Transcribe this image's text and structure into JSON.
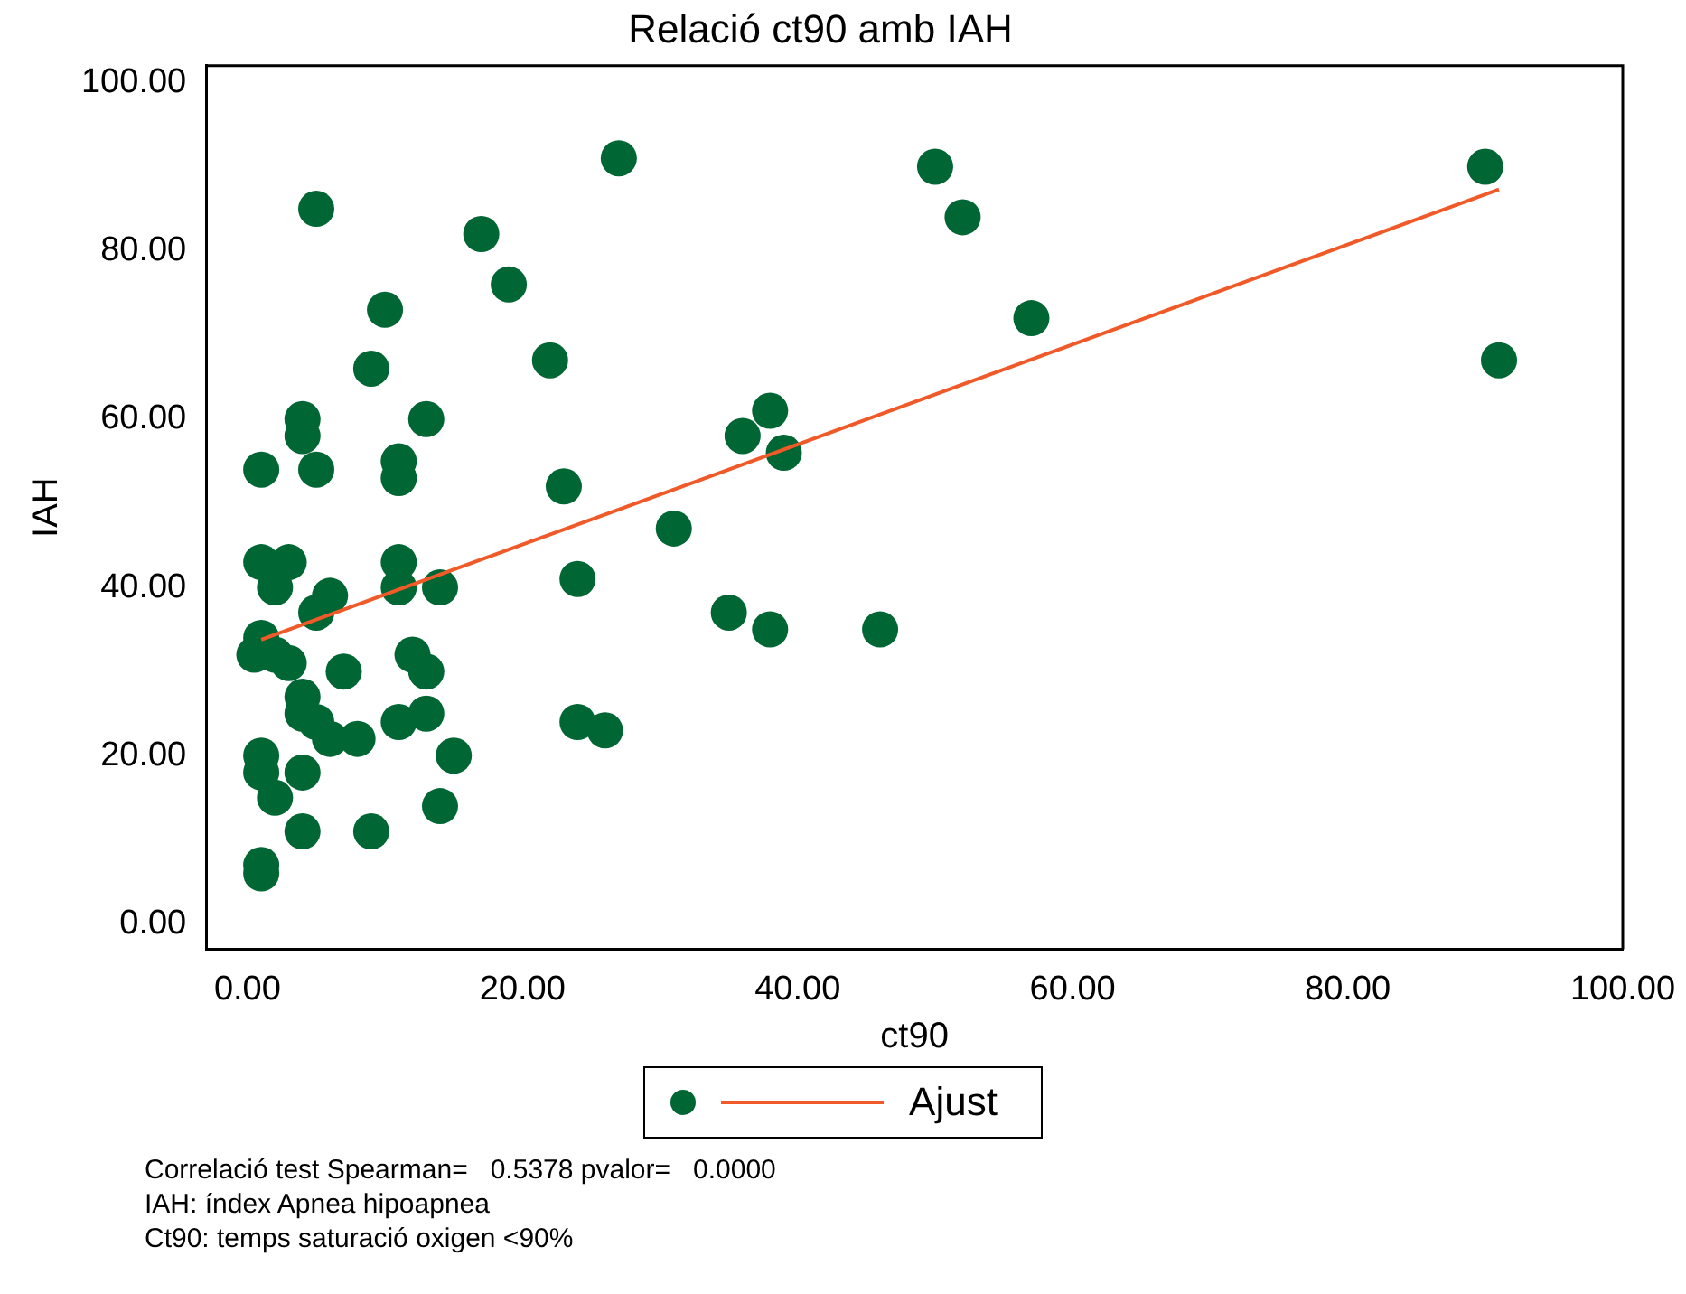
{
  "chart_data": {
    "type": "scatter",
    "title": "Relació ct90 amb IAH",
    "xlabel": "ct90",
    "ylabel": "IAH",
    "xlim": [
      -3,
      100
    ],
    "ylim": [
      -3,
      102
    ],
    "xticks": [
      {
        "value": 0,
        "label": "0.00"
      },
      {
        "value": 20,
        "label": "20.00"
      },
      {
        "value": 40,
        "label": "40.00"
      },
      {
        "value": 60,
        "label": "60.00"
      },
      {
        "value": 80,
        "label": "80.00"
      },
      {
        "value": 100,
        "label": "100.00"
      }
    ],
    "yticks": [
      {
        "value": 0,
        "label": "0.00"
      },
      {
        "value": 20,
        "label": "20.00"
      },
      {
        "value": 40,
        "label": "40.00"
      },
      {
        "value": 60,
        "label": "60.00"
      },
      {
        "value": 80,
        "label": "80.00"
      },
      {
        "value": 100,
        "label": "100.00"
      }
    ],
    "grid": false,
    "legend": "bottom",
    "marker": "circle",
    "series": [
      {
        "color": "#006633",
        "x": [
          5,
          17,
          27,
          50,
          52,
          90,
          91,
          57,
          10,
          19,
          9,
          22,
          4,
          13,
          1,
          5,
          11,
          11,
          4,
          38,
          36,
          39,
          23,
          31,
          24,
          1,
          3,
          2,
          6,
          5,
          11,
          11,
          14,
          35,
          38,
          46,
          1,
          0.5,
          2,
          3,
          12,
          13,
          7,
          4,
          5,
          4,
          6,
          8,
          11,
          13,
          24,
          26,
          1,
          1,
          4,
          2,
          15,
          14,
          4,
          9,
          1,
          1
        ],
        "values": [
          85,
          82,
          91,
          90,
          84,
          90,
          67,
          72,
          73,
          76,
          66,
          67,
          60,
          60,
          54,
          54,
          55,
          53,
          58,
          61,
          58,
          56,
          52,
          47,
          41,
          43,
          43,
          40,
          39,
          37,
          43,
          40,
          40,
          37,
          35,
          35,
          34,
          32,
          32,
          31,
          32,
          30,
          30,
          25,
          24,
          27,
          22,
          22,
          24,
          25,
          24,
          23,
          20,
          18,
          18,
          15,
          20,
          14,
          11,
          11,
          7,
          6
        ]
      },
      {
        "type": "line",
        "name": "Ajust",
        "color": "#f05a28",
        "marker": "none",
        "line_style": "solid",
        "x": [
          1,
          91
        ],
        "values": [
          33.8,
          87.3
        ]
      }
    ],
    "annotations": [
      "Correlació test Spearman=   0.5378 pvalor=   0.0000",
      "IAH: índex Apnea hipoapnea",
      "Ct90: temps saturació oxigen <90%"
    ]
  }
}
